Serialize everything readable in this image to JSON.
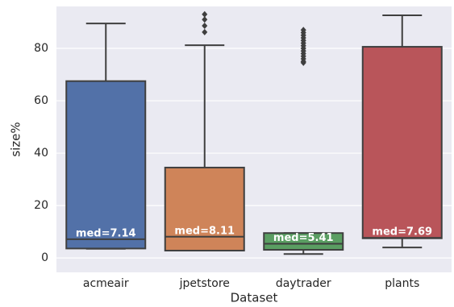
{
  "chart_data": {
    "type": "box",
    "x_label": "Dataset",
    "y_label": "size%",
    "categories": [
      "acmeair",
      "jpetstore",
      "daytrader",
      "plants"
    ],
    "colors": [
      "#5271a8",
      "#cf8459",
      "#5a9e62",
      "#b9555a"
    ],
    "whisker_low": [
      3.5,
      2.8,
      1.5,
      4
    ],
    "q1": [
      3.6,
      2.8,
      3.1,
      7.5
    ],
    "median": [
      7.14,
      8.11,
      5.41,
      7.69
    ],
    "median_labels": [
      "med=7.14",
      "med=8.11",
      "med=5.41",
      "med=7.69"
    ],
    "q3": [
      67.5,
      34.5,
      9.5,
      80.6
    ],
    "whisker_high": [
      89.5,
      81.2,
      9.5,
      92.6
    ],
    "outliers": [
      [],
      [
        93,
        91,
        88.6,
        86.2
      ],
      [
        87,
        86,
        85,
        84,
        83,
        82,
        81,
        80,
        79,
        78,
        77,
        76,
        75,
        74.5
      ],
      []
    ],
    "ylim": [
      -5.5,
      96
    ],
    "yticks": [
      0,
      20,
      40,
      60,
      80
    ],
    "grid": true
  }
}
